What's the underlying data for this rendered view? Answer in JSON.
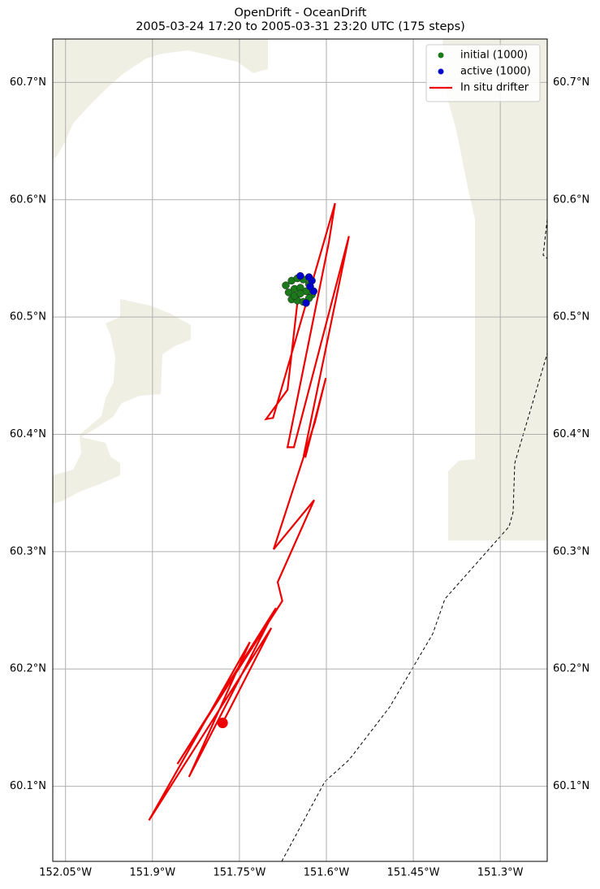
{
  "chart_data": {
    "type": "map",
    "title": "OpenDrift - OceanDrift",
    "subtitle": "2005-03-24 17:20 to 2005-03-31 23:20 UTC (175 steps)",
    "xlim": [
      -152.072,
      -151.219
    ],
    "ylim": [
      60.036,
      60.737
    ],
    "xticks": [
      {
        "value": -152.05,
        "label": "152.05°W"
      },
      {
        "value": -151.9,
        "label": "151.9°W"
      },
      {
        "value": -151.75,
        "label": "151.75°W"
      },
      {
        "value": -151.6,
        "label": "151.6°W"
      },
      {
        "value": -151.45,
        "label": "151.45°W"
      },
      {
        "value": -151.3,
        "label": "151.3°W"
      }
    ],
    "yticks": [
      {
        "value": 60.1,
        "label": "60.1°N"
      },
      {
        "value": 60.2,
        "label": "60.2°N"
      },
      {
        "value": 60.3,
        "label": "60.3°N"
      },
      {
        "value": 60.4,
        "label": "60.4°N"
      },
      {
        "value": 60.5,
        "label": "60.5°N"
      },
      {
        "value": 60.6,
        "label": "60.6°N"
      },
      {
        "value": 60.7,
        "label": "60.7°N"
      }
    ],
    "grid": true,
    "legend": "upper right",
    "series": [
      {
        "name": "initial (1000)",
        "kind": "points",
        "color": "#1a7a1a",
        "x": [
          -151.67,
          -151.66,
          -151.65,
          -151.64,
          -151.63,
          -151.665,
          -151.655,
          -151.645,
          -151.635,
          -151.625,
          -151.66,
          -151.65,
          -151.64,
          -151.63,
          -151.655,
          -151.645
        ],
        "y": [
          60.527,
          60.531,
          60.533,
          60.532,
          60.528,
          60.521,
          60.524,
          60.525,
          60.522,
          60.519,
          60.515,
          60.514,
          60.513,
          60.516,
          60.518,
          60.52
        ]
      },
      {
        "name": "active (1000)",
        "kind": "points",
        "color": "#0000cc",
        "x": [
          -151.625,
          -151.63,
          -151.645,
          -151.622,
          -151.635,
          -151.628
        ],
        "y": [
          60.531,
          60.534,
          60.535,
          60.522,
          60.512,
          60.526
        ]
      },
      {
        "name": "In situ drifter",
        "kind": "line",
        "color": "#ee0000",
        "x": [
          -151.648,
          -151.667,
          -151.704,
          -151.692,
          -151.585,
          -151.596,
          -151.667,
          -151.656,
          -151.561,
          -151.639,
          -151.636,
          -151.601,
          -151.62,
          -151.691,
          -151.621,
          -151.684,
          -151.676,
          -151.857,
          -151.687,
          -151.837,
          -151.732,
          -151.906,
          -151.695,
          -151.779
        ],
        "y": [
          60.521,
          60.438,
          60.413,
          60.414,
          60.597,
          60.563,
          60.389,
          60.389,
          60.569,
          60.382,
          60.381,
          60.448,
          60.41,
          60.302,
          60.344,
          60.274,
          60.258,
          60.119,
          60.252,
          60.108,
          60.223,
          60.071,
          60.235,
          60.154
        ]
      }
    ]
  }
}
